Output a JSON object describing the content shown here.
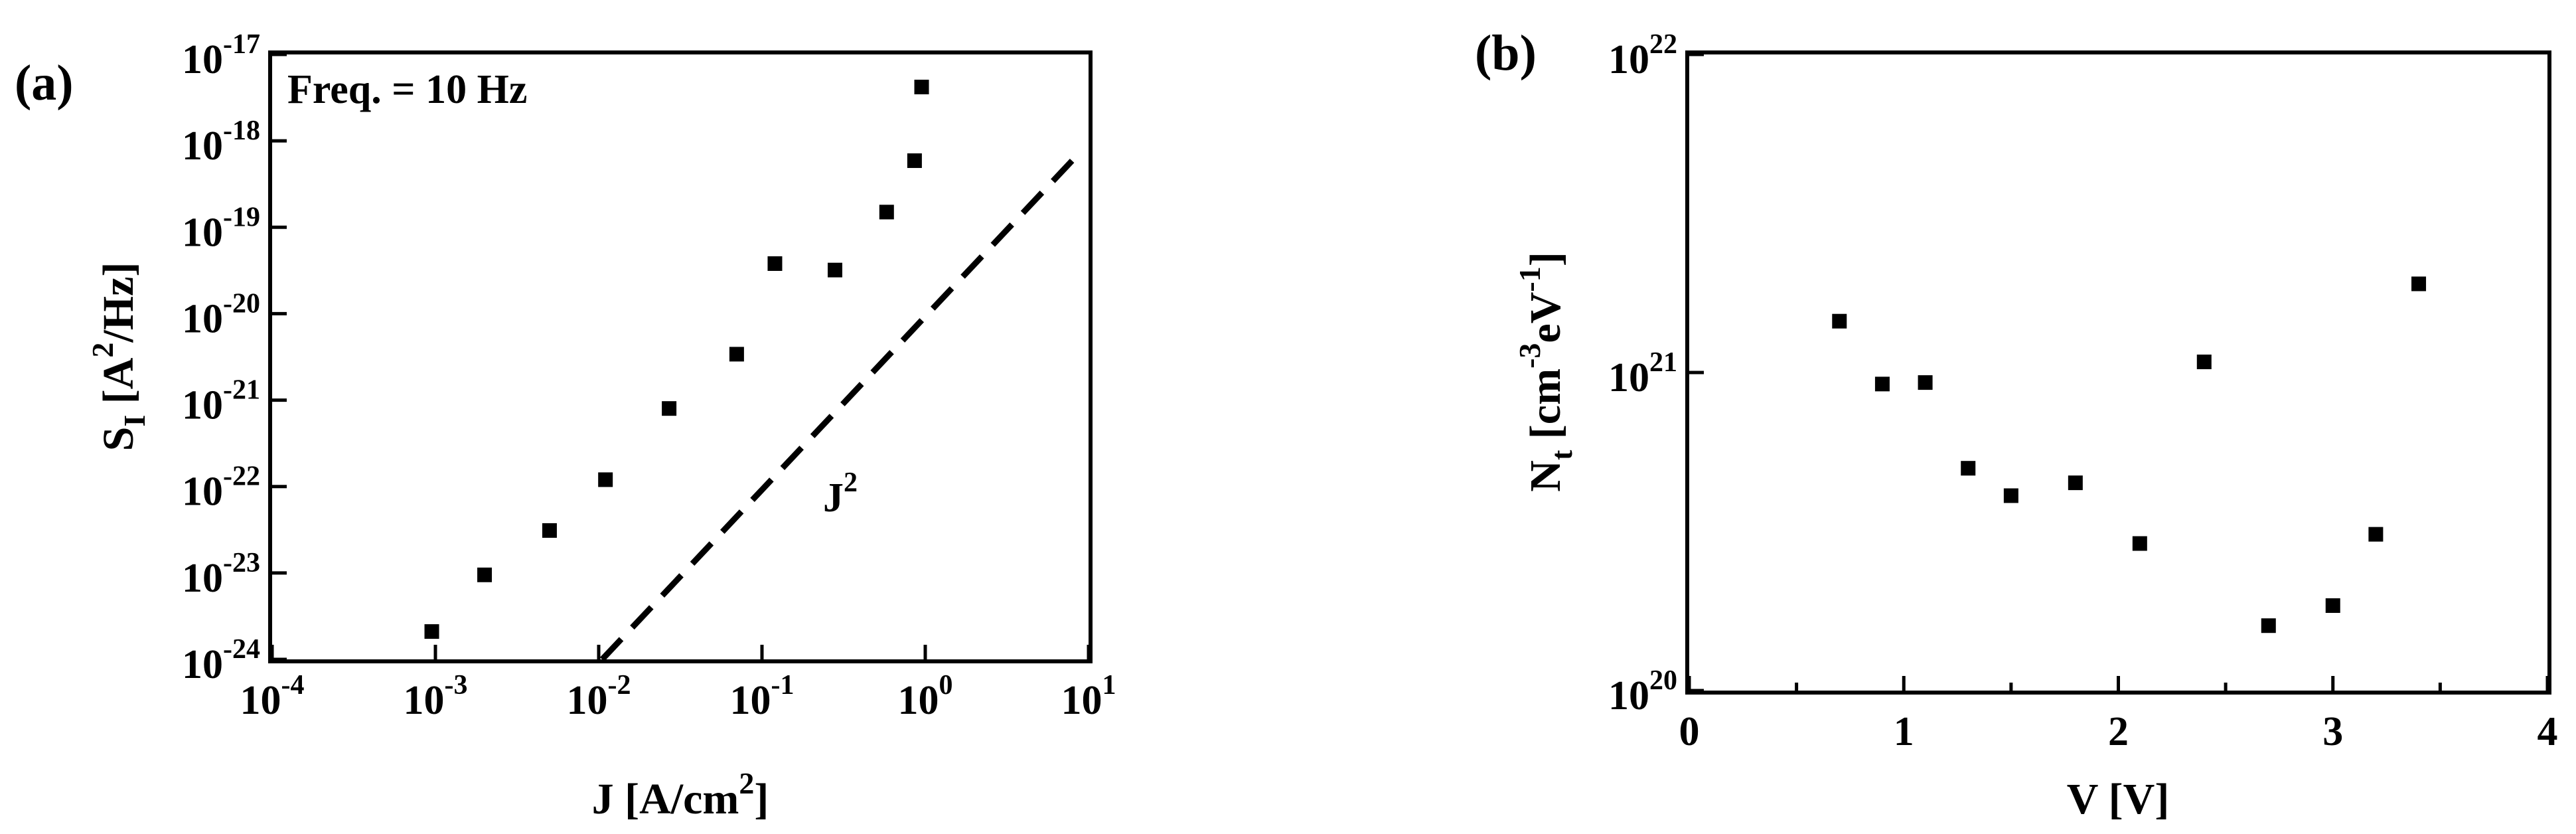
{
  "chart_data": [
    {
      "type": "scatter",
      "panel_label": "(a)",
      "annotation": "Freq. = 10 Hz",
      "xlabel": {
        "main": "J [A/cm",
        "sup": "2",
        "tail": "]"
      },
      "ylabel": {
        "main": "S",
        "sub": "I",
        "mid": " [A",
        "sup": "2",
        "tail": "/Hz]"
      },
      "xscale": "log",
      "yscale": "log",
      "xlim": [
        0.0001,
        10
      ],
      "ylim": [
        1e-24,
        1e-17
      ],
      "x_ticks": [
        {
          "base": "10",
          "exp": "-4",
          "value": 0.0001
        },
        {
          "base": "10",
          "exp": "-3",
          "value": 0.001
        },
        {
          "base": "10",
          "exp": "-2",
          "value": 0.01
        },
        {
          "base": "10",
          "exp": "-1",
          "value": 0.1
        },
        {
          "base": "10",
          "exp": "0",
          "value": 1
        },
        {
          "base": "10",
          "exp": "1",
          "value": 10
        }
      ],
      "y_ticks": [
        {
          "base": "10",
          "exp": "-24",
          "value": 1e-24
        },
        {
          "base": "10",
          "exp": "-23",
          "value": 1e-23
        },
        {
          "base": "10",
          "exp": "-22",
          "value": 1e-22
        },
        {
          "base": "10",
          "exp": "-21",
          "value": 1e-21
        },
        {
          "base": "10",
          "exp": "-20",
          "value": 1e-20
        },
        {
          "base": "10",
          "exp": "-19",
          "value": 1e-19
        },
        {
          "base": "10",
          "exp": "-18",
          "value": 1e-18
        },
        {
          "base": "10",
          "exp": "-17",
          "value": 1e-17
        }
      ],
      "series": [
        {
          "marker": "square",
          "color": "#000000",
          "points": [
            {
              "x": 0.00095,
              "y": 2.1e-24
            },
            {
              "x": 0.002,
              "y": 9.5e-24
            },
            {
              "x": 0.005,
              "y": 3.1e-23
            },
            {
              "x": 0.011,
              "y": 1.2e-22
            },
            {
              "x": 0.027,
              "y": 8e-22
            },
            {
              "x": 0.07,
              "y": 3.4e-21
            },
            {
              "x": 0.12,
              "y": 3.8e-20
            },
            {
              "x": 0.28,
              "y": 3.2e-20
            },
            {
              "x": 0.58,
              "y": 1.5e-19
            },
            {
              "x": 0.86,
              "y": 5.9e-19
            },
            {
              "x": 0.95,
              "y": 4.2e-18
            }
          ]
        }
      ],
      "reference_line": {
        "label": {
          "main": "J",
          "sup": "2"
        },
        "style": "dashed",
        "slope": 2,
        "x": [
          0.0105,
          8.0
        ],
        "y": [
          1e-24,
          6e-19
        ]
      }
    },
    {
      "type": "scatter",
      "panel_label": "(b)",
      "xlabel": {
        "main": "V [V]"
      },
      "ylabel": {
        "main": "N",
        "sub": "t",
        "mid": " [cm",
        "sup": "-3",
        "mid2": "eV",
        "sup2": "-1",
        "tail": "]"
      },
      "xscale": "linear",
      "yscale": "log",
      "xlim": [
        0,
        4
      ],
      "ylim": [
        1e+20,
        1e+22
      ],
      "x_ticks": [
        {
          "label": "0",
          "value": 0
        },
        {
          "label": "1",
          "value": 1
        },
        {
          "label": "2",
          "value": 2
        },
        {
          "label": "3",
          "value": 3
        },
        {
          "label": "4",
          "value": 4
        }
      ],
      "y_ticks": [
        {
          "base": "10",
          "exp": "20",
          "value": 1e+20
        },
        {
          "base": "10",
          "exp": "21",
          "value": 1e+21
        },
        {
          "base": "10",
          "exp": "22",
          "value": 1e+22
        }
      ],
      "series": [
        {
          "marker": "square",
          "color": "#000000",
          "points": [
            {
              "x": 0.7,
              "y": 1.45e+21
            },
            {
              "x": 0.9,
              "y": 9.2e+20
            },
            {
              "x": 1.1,
              "y": 9.3e+20
            },
            {
              "x": 1.3,
              "y": 5e+20
            },
            {
              "x": 1.5,
              "y": 4.1e+20
            },
            {
              "x": 1.8,
              "y": 4.5e+20
            },
            {
              "x": 2.1,
              "y": 2.9e+20
            },
            {
              "x": 2.4,
              "y": 1.08e+21
            },
            {
              "x": 2.7,
              "y": 1.6e+20
            },
            {
              "x": 3.0,
              "y": 1.85e+20
            },
            {
              "x": 3.2,
              "y": 3.1e+20
            },
            {
              "x": 3.4,
              "y": 1.9e+21
            }
          ]
        }
      ]
    }
  ]
}
